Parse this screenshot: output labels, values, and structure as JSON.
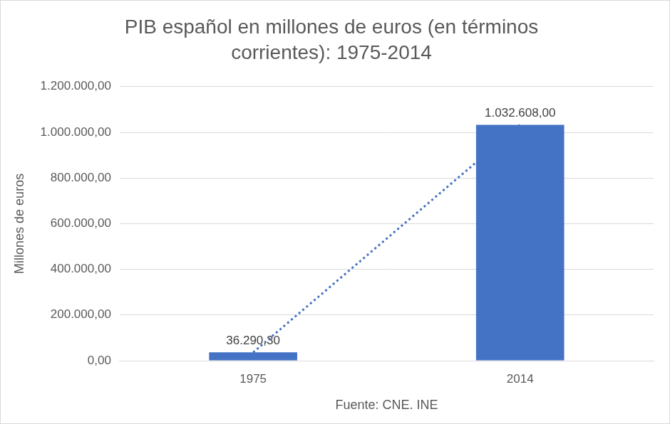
{
  "chart_data": {
    "type": "bar",
    "title": "PIB español en millones de euros (en términos corrientes): 1975-2014",
    "x_label": "Fuente: CNE. INE",
    "y_label": "Millones de euros",
    "categories": [
      "1975",
      "2014"
    ],
    "series": [
      {
        "values": [
          36290.3,
          1032608
        ],
        "color": "#4472c4",
        "data_labels": true,
        "value_labels": [
          "36.290,30",
          "1.032.608,00"
        ]
      },
      {
        "type": "line",
        "values": [
          36290.3,
          1032608
        ],
        "color": "#4472c4",
        "line_style": "dotted",
        "marker": "none"
      }
    ],
    "ylim": [
      0,
      1200000
    ],
    "yticks": [
      {
        "value": 0,
        "label": "0,00"
      },
      {
        "value": 200000,
        "label": "200.000,00"
      },
      {
        "value": 400000,
        "label": "400.000,00"
      },
      {
        "value": 600000,
        "label": "600.000,00"
      },
      {
        "value": 800000,
        "label": "800.000,00"
      },
      {
        "value": 1000000,
        "label": "1.000.000,00"
      },
      {
        "value": 1200000,
        "label": "1.200.000,00"
      }
    ],
    "grid": true
  }
}
